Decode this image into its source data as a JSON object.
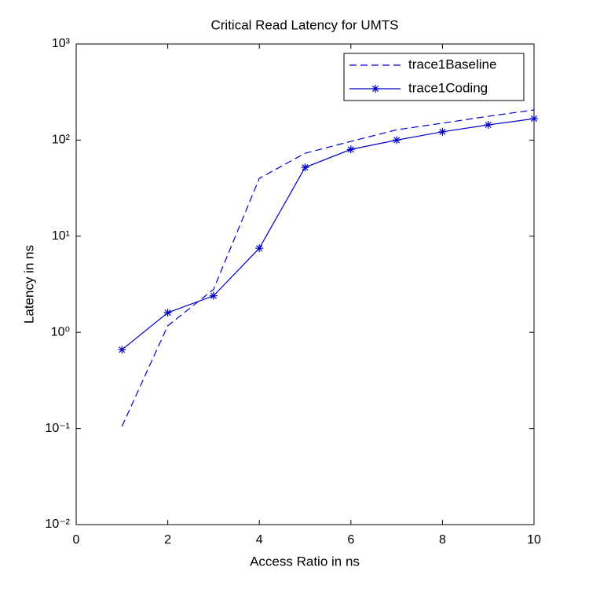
{
  "chart_data": {
    "type": "line",
    "title": "Critical Read Latency for UMTS",
    "x_label": "Access Ratio in ns",
    "y_label": "Latency in ns",
    "x": [
      1,
      2,
      3,
      4,
      5,
      6,
      7,
      8,
      9,
      10
    ],
    "series": [
      {
        "name": "trace1Baseline",
        "color": "#0000cc",
        "line_style": "dashed",
        "marker": "none",
        "values": [
          0.105,
          1.17,
          2.8,
          40,
          73,
          97,
          128,
          150,
          177,
          206
        ]
      },
      {
        "name": "trace1Coding",
        "color": "#0000cc",
        "line_style": "solid",
        "marker": "asterisk",
        "values": [
          0.66,
          1.6,
          2.4,
          7.5,
          52,
          80,
          100,
          122,
          144,
          167
        ]
      }
    ],
    "xlim": [
      0,
      10
    ],
    "xticks": [
      0,
      2,
      4,
      6,
      8,
      10
    ],
    "ylim": [
      0.01,
      1000
    ],
    "y_scale": "log",
    "yticks": [
      {
        "value": 0.01,
        "label": "10⁻²"
      },
      {
        "value": 0.1,
        "label": "10⁻¹"
      },
      {
        "value": 1,
        "label": "10⁰"
      },
      {
        "value": 10,
        "label": "10¹"
      },
      {
        "value": 100,
        "label": "10²"
      },
      {
        "value": 1000,
        "label": "10³"
      }
    ],
    "grid": false,
    "legend_position": "northeast"
  }
}
